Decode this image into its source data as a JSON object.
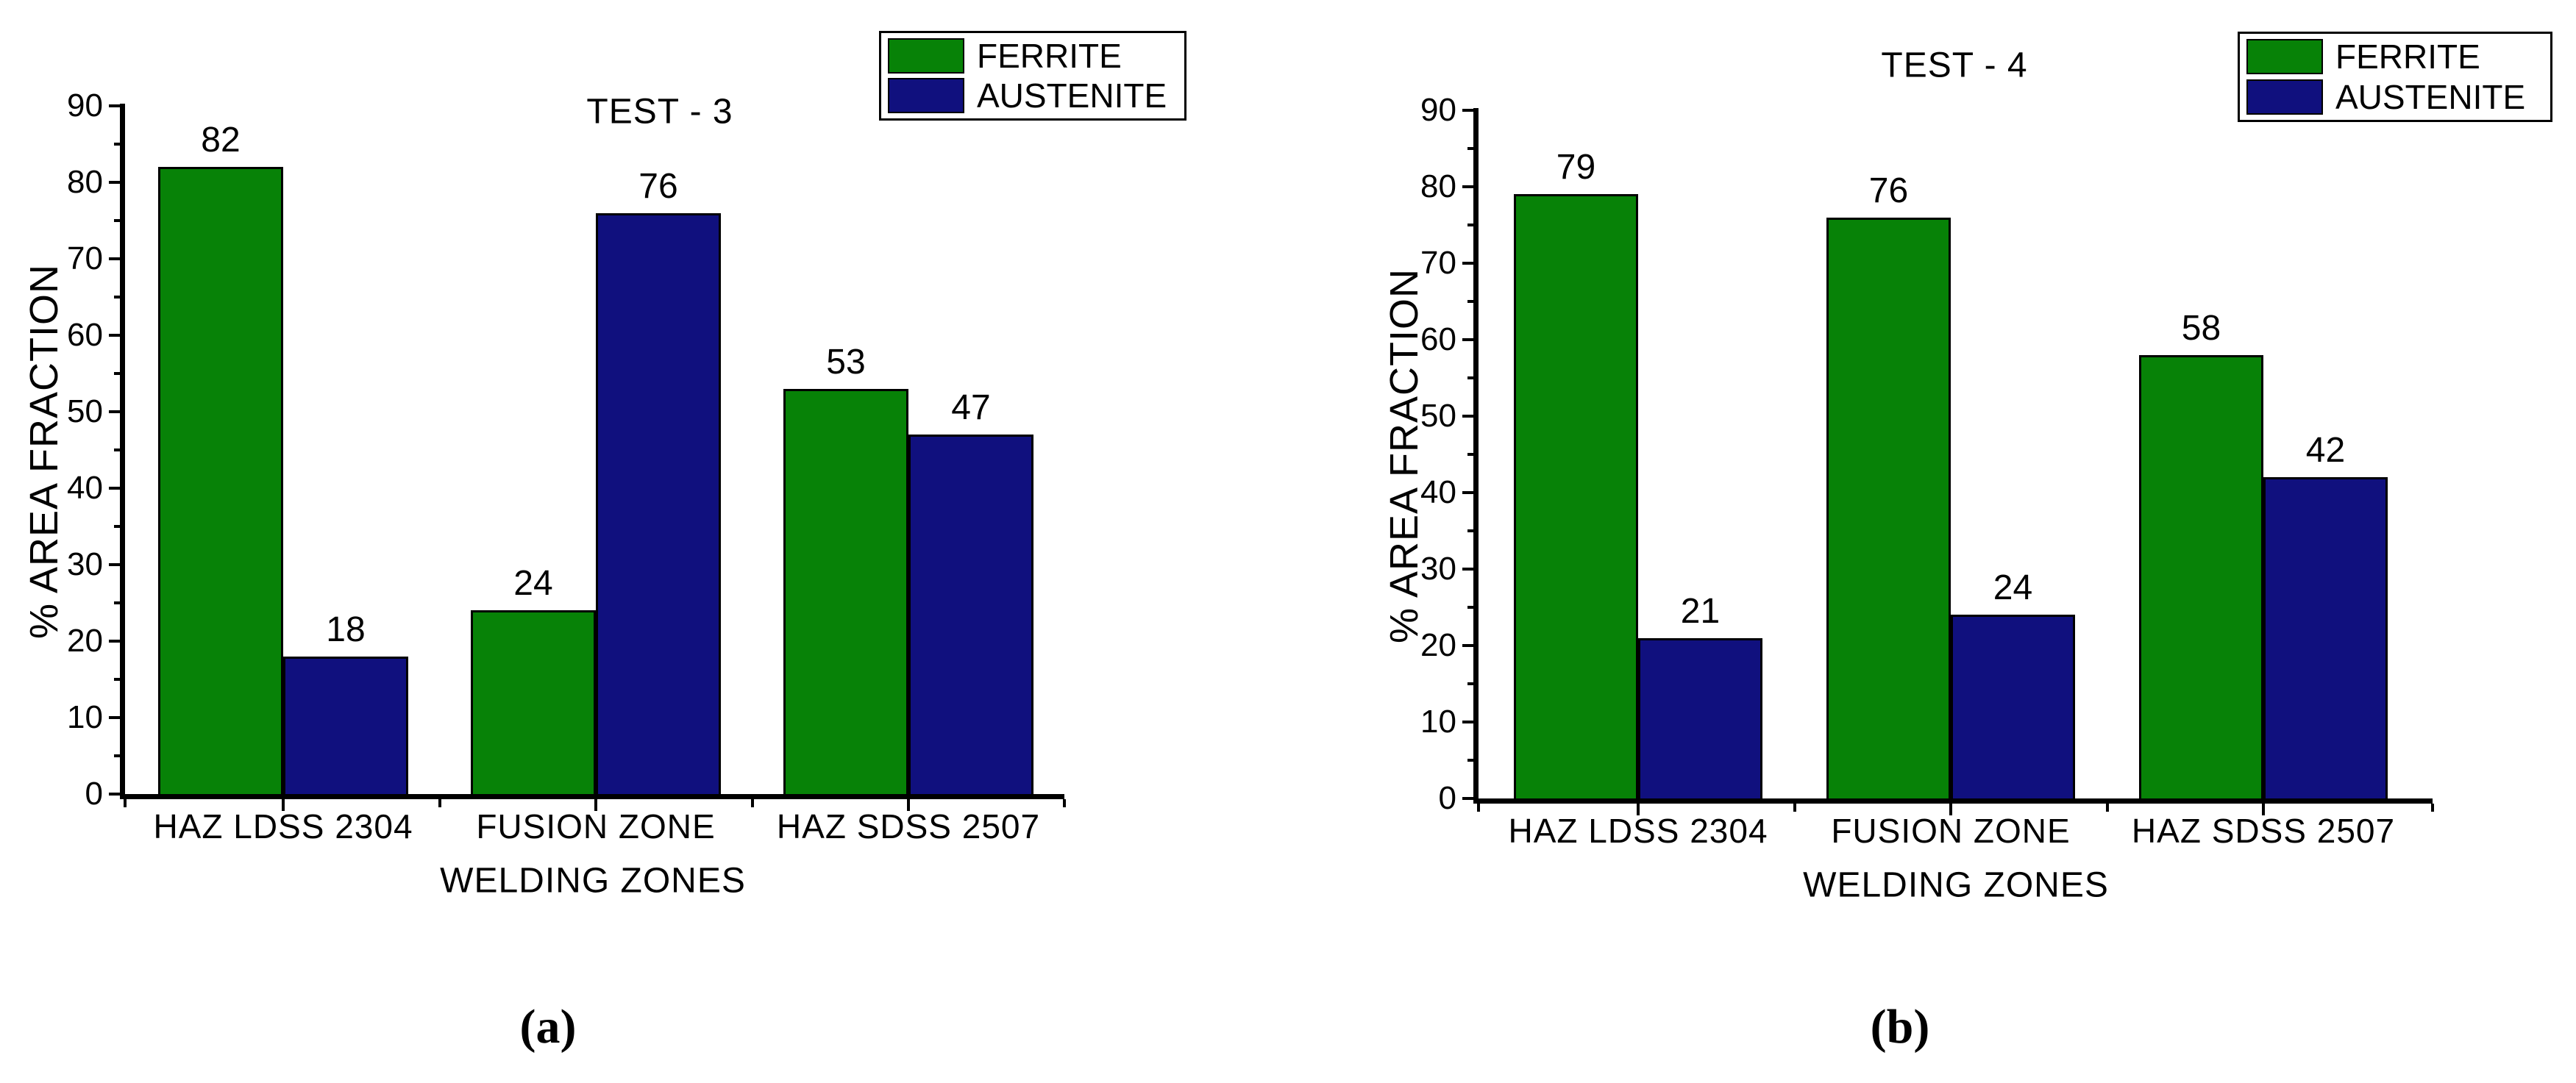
{
  "figure": {
    "background": "#ffffff",
    "text_color": "#000000",
    "axis_color": "#000000",
    "captions": {
      "a": "(a)",
      "b": "(b)"
    }
  },
  "chart_data": [
    {
      "type": "bar",
      "panel": "a",
      "title": "TEST - 3",
      "xlabel": "WELDING ZONES",
      "ylabel": "% AREA FRACTION",
      "ylim": [
        0,
        90
      ],
      "ytick_step": 10,
      "yminor_step": 5,
      "grid": false,
      "legend_position": "top-right",
      "categories": [
        "HAZ LDSS 2304",
        "FUSION ZONE",
        "HAZ SDSS 2507"
      ],
      "series": [
        {
          "name": "FERRITE",
          "color": "#078207",
          "values": [
            82,
            24,
            53
          ]
        },
        {
          "name": "AUSTENITE",
          "color": "#10107E",
          "values": [
            18,
            76,
            47
          ]
        }
      ]
    },
    {
      "type": "bar",
      "panel": "b",
      "title": "TEST - 4",
      "xlabel": "WELDING ZONES",
      "ylabel": "% AREA FRACTION",
      "ylim": [
        0,
        90
      ],
      "ytick_step": 10,
      "yminor_step": 5,
      "grid": false,
      "legend_position": "top-right",
      "categories": [
        "HAZ LDSS 2304",
        "FUSION ZONE",
        "HAZ SDSS 2507"
      ],
      "series": [
        {
          "name": "FERRITE",
          "color": "#078207",
          "values": [
            79,
            76,
            58
          ]
        },
        {
          "name": "AUSTENITE",
          "color": "#10107E",
          "values": [
            21,
            24,
            42
          ]
        }
      ]
    }
  ]
}
